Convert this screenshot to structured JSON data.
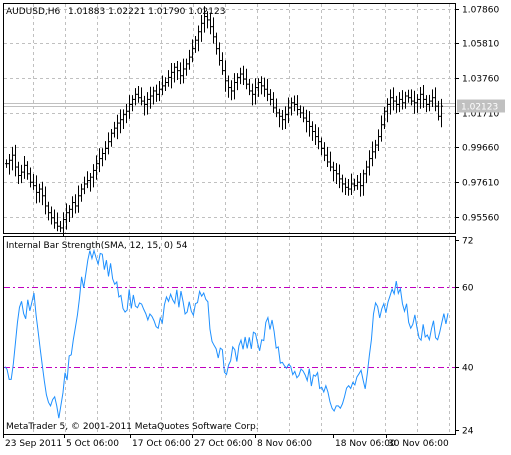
{
  "chart_data": [
    {
      "type": "candlestick",
      "symbol_header": "AUDUSD,H6",
      "ohlc_header": "1.01883  1.02221  1.01790  1.02123",
      "price_axis": {
        "ylim": [
          0.946,
          1.082
        ],
        "ticks": [
          "1.07860",
          "1.05810",
          "1.03760",
          "1.01710",
          "0.99660",
          "0.97610",
          "0.95560"
        ],
        "tick_values": [
          1.0786,
          1.0581,
          1.0376,
          1.0171,
          0.9966,
          0.9761,
          0.9556
        ]
      },
      "current_price_label": "1.02123",
      "current_price": 1.02123,
      "grid": true,
      "colors": {
        "bars": "#000000",
        "grid": "#c0c0c0",
        "current_price_line": "#c0c0c0",
        "current_price_box": "#c0c0c0"
      },
      "close_series": [
        0.987,
        0.989,
        0.992,
        0.985,
        0.98,
        0.982,
        0.986,
        0.981,
        0.976,
        0.974,
        0.97,
        0.972,
        0.968,
        0.962,
        0.958,
        0.955,
        0.952,
        0.95,
        0.949,
        0.954,
        0.958,
        0.96,
        0.964,
        0.962,
        0.968,
        0.972,
        0.975,
        0.977,
        0.979,
        0.983,
        0.987,
        0.99,
        0.993,
        0.996,
        1.0,
        1.005,
        1.008,
        1.011,
        1.013,
        1.016,
        1.018,
        1.022,
        1.025,
        1.028,
        1.026,
        1.024,
        1.022,
        1.025,
        1.027,
        1.03,
        1.028,
        1.031,
        1.033,
        1.035,
        1.038,
        1.041,
        1.044,
        1.042,
        1.039,
        1.043,
        1.046,
        1.05,
        1.055,
        1.06,
        1.065,
        1.07,
        1.074,
        1.072,
        1.068,
        1.062,
        1.055,
        1.048,
        1.042,
        1.036,
        1.032,
        1.03,
        1.035,
        1.038,
        1.04,
        1.037,
        1.034,
        1.03,
        1.028,
        1.032,
        1.035,
        1.033,
        1.031,
        1.028,
        1.025,
        1.02,
        1.017,
        1.015,
        1.013,
        1.016,
        1.02,
        1.023,
        1.022,
        1.019,
        1.017,
        1.014,
        1.012,
        1.009,
        1.006,
        1.003,
        1.0,
        0.996,
        0.992,
        0.988,
        0.985,
        0.983,
        0.981,
        0.978,
        0.975,
        0.973,
        0.972,
        0.975,
        0.974,
        0.976,
        0.974,
        0.981,
        0.985,
        0.99,
        0.994,
        0.998,
        1.003,
        1.01,
        1.018,
        1.022,
        1.026,
        1.024,
        1.022,
        1.025,
        1.023,
        1.027,
        1.026,
        1.024,
        1.023,
        1.025,
        1.028,
        1.025,
        1.022,
        1.024,
        1.026,
        1.021,
        1.015,
        1.021
      ]
    },
    {
      "type": "line",
      "title": "Internal Bar Strength(SMA, 12, 15, 0) 54",
      "y_axis": {
        "ylim": [
          23,
          73
        ],
        "ticks": [
          "72",
          "60",
          "40",
          "24"
        ],
        "tick_values": [
          72,
          60,
          40,
          24
        ]
      },
      "levels": [
        60,
        40
      ],
      "grid": true,
      "colors": {
        "line": "#1e90ff",
        "levels": "#c000c0",
        "grid": "#c0c0c0"
      },
      "values": [
        40.0,
        39.3,
        36.8,
        36.8,
        40.6,
        45.8,
        51.1,
        55.0,
        56.5,
        53.4,
        52.1,
        56.9,
        54.1,
        56.3,
        58.6,
        53.1,
        48.9,
        44.5,
        40.4,
        36.4,
        32.9,
        31.0,
        30.1,
        31.7,
        32.4,
        30.1,
        27.0,
        30.2,
        33.4,
        38.5,
        36.6,
        42.7,
        43.0,
        46.8,
        49.9,
        53.1,
        57.4,
        62.7,
        59.9,
        63.3,
        66.9,
        69.3,
        67.3,
        69.3,
        67.5,
        65.9,
        68.6,
        68.4,
        64.5,
        66.9,
        62.8,
        66.1,
        62.2,
        60.8,
        61.4,
        57.6,
        58.0,
        54.7,
        53.8,
        54.3,
        59.5,
        54.7,
        58.1,
        55.3,
        54.9,
        56.1,
        55.8,
        54.5,
        53.4,
        51.8,
        53.3,
        52.7,
        51.6,
        50.1,
        49.7,
        52.3,
        51.1,
        55.6,
        57.6,
        56.5,
        58.3,
        56.9,
        56.0,
        59.4,
        55.0,
        59.1,
        56.5,
        53.3,
        53.8,
        56.4,
        54.0,
        53.0,
        55.9,
        56.2,
        59.0,
        57.8,
        58.6,
        57.0,
        56.4,
        49.5,
        46.4,
        45.4,
        44.5,
        42.2,
        44.7,
        44.3,
        38.6,
        38.0,
        40.4,
        41.5,
        45.0,
        44.3,
        41.3,
        45.3,
        46.7,
        44.4,
        47.5,
        44.6,
        47.4,
        44.5,
        48.7,
        48.4,
        46.0,
        44.0,
        46.8,
        46.6,
        51.2,
        52.4,
        49.4,
        51.8,
        48.9,
        44.7,
        45.0,
        40.9,
        41.1,
        40.2,
        39.6,
        40.6,
        40.1,
        38.0,
        38.8,
        37.2,
        37.8,
        39.4,
        38.9,
        37.9,
        36.5,
        39.5,
        35.1,
        37.9,
        37.6,
        38.5,
        34.5,
        34.8,
        33.6,
        35.2,
        33.6,
        31.1,
        29.5,
        28.8,
        30.1,
        30.1,
        29.5,
        30.6,
        32.4,
        34.6,
        35.2,
        34.5,
        36.0,
        35.4,
        37.4,
        38.2,
        39.1,
        36.6,
        34.4,
        38.2,
        42.8,
        46.8,
        53.3,
        56.1,
        55.2,
        52.3,
        54.6,
        55.9,
        53.6,
        56.3,
        57.9,
        59.6,
        58.4,
        61.6,
        58.5,
        59.7,
        55.9,
        54.0,
        55.9,
        51.2,
        49.7,
        50.7,
        53.1,
        49.9,
        47.3,
        46.7,
        50.7,
        47.5,
        48.0,
        46.8,
        49.5,
        51.6,
        47.3,
        46.8,
        48.7,
        51.1,
        53.4,
        50.8,
        53.5
      ]
    }
  ],
  "time_axis": [
    "23 Sep 2011",
    "5 Oct 06:00",
    "17 Oct 06:00",
    "27 Oct 06:00",
    "8 Nov 06:00",
    "18 Nov 06:00",
    "30 Nov 06:00"
  ],
  "footer_text": "MetaTrader 5, © 2001-2011 MetaQuotes Software Corp."
}
